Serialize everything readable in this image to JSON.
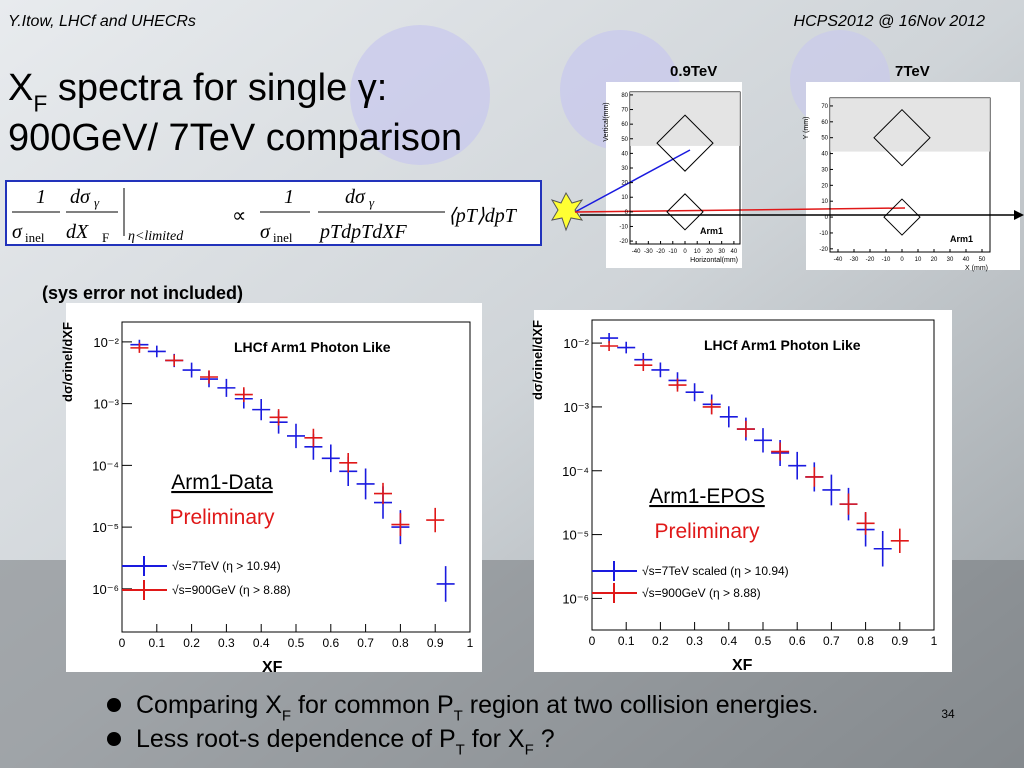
{
  "header": {
    "left": "Y.Itow,  LHCf and UHECRs",
    "right": "HCPS2012 @ 16Nov 2012"
  },
  "title": {
    "line1": [
      {
        "t": "X"
      },
      {
        "sub": "F"
      },
      {
        "t": " spectra for single γ:"
      }
    ],
    "line2": "900GeV/ 7TeV comparison"
  },
  "formula": {
    "one_a": "1",
    "sigma_a": "σ",
    "inel_a": "inel",
    "dsig_a": "dσ",
    "gamma_a": "γ",
    "dX": "dX",
    "F_a": "F",
    "cond": "η<limited",
    "prop": "∝",
    "one_b": "1",
    "sigma_b": "σ",
    "inel_b": "inel",
    "dsig_b": "dσ",
    "gamma_b": "γ",
    "den_b": "pTdpTdXF",
    "tail": "⟨pT⟩dpT"
  },
  "note": "(sys error not included)",
  "detectors": [
    {
      "label": "0.9TeV",
      "arm": "Arm1",
      "xlabel": "Horizontal(mm)",
      "ylabel": "Vertical(mm)",
      "xlim": [
        -45,
        45
      ],
      "ylim": [
        -22,
        82
      ],
      "xticks": [
        -40,
        -30,
        -20,
        -10,
        0,
        10,
        20,
        30,
        40
      ],
      "yticks": [
        -20,
        -10,
        0,
        10,
        20,
        30,
        40,
        50,
        60,
        70,
        80
      ]
    },
    {
      "label": "7TeV",
      "arm": "Arm1",
      "xlabel": "X (mm)",
      "ylabel": "Y (mm)",
      "xlim": [
        -45,
        55
      ],
      "ylim": [
        -22,
        75
      ],
      "xticks": [
        -40,
        -30,
        -20,
        -10,
        0,
        10,
        20,
        30,
        40,
        50
      ],
      "yticks": [
        -20,
        -10,
        0,
        10,
        20,
        30,
        40,
        50,
        60,
        70
      ]
    }
  ],
  "plots": [
    {
      "title": "LHCf Arm1 Photon Like",
      "xlabel": "XF",
      "ylabel": "dσ/σinel/dXF",
      "xlim": [
        0,
        1
      ],
      "ylim": [
        2e-07,
        0.021
      ],
      "log_y": true,
      "xticks": [
        0,
        0.1,
        0.2,
        0.3,
        0.4,
        0.5,
        0.6,
        0.7,
        0.8,
        0.9,
        1
      ],
      "yticks": [
        {
          "value": 0.01,
          "label": "10⁻²"
        },
        {
          "value": 0.001,
          "label": "10⁻³"
        },
        {
          "value": 0.0001,
          "label": "10⁻⁴"
        },
        {
          "value": 1e-05,
          "label": "10⁻⁵"
        },
        {
          "value": 1e-06,
          "label": "10⁻⁶"
        }
      ],
      "annotation": "Arm1-Data",
      "status": "Preliminary",
      "series": [
        {
          "name": "√s=7TeV (η > 10.94)",
          "color": "#1a1adf",
          "x": [
            0.05,
            0.1,
            0.15,
            0.2,
            0.25,
            0.3,
            0.35,
            0.4,
            0.45,
            0.5,
            0.55,
            0.6,
            0.65,
            0.7,
            0.75,
            0.8,
            0.93
          ],
          "values": [
            0.009,
            0.007,
            0.005,
            0.0035,
            0.0025,
            0.0018,
            0.0012,
            0.0008,
            0.0005,
            0.0003,
            0.0002,
            0.00013,
            8e-05,
            5e-05,
            2.5e-05,
            1e-05,
            1.2e-06
          ]
        },
        {
          "name": "√s=900GeV (η > 8.88)",
          "color": "#e01818",
          "x": [
            0.05,
            0.15,
            0.25,
            0.35,
            0.45,
            0.55,
            0.65,
            0.75,
            0.8,
            0.9
          ],
          "values": [
            0.008,
            0.005,
            0.0027,
            0.0014,
            0.0006,
            0.00028,
            0.00011,
            3.5e-05,
            1.1e-05,
            1.3e-05
          ]
        }
      ]
    },
    {
      "title": "LHCf Arm1 Photon Like",
      "xlabel": "XF",
      "ylabel": "dσ/σinel/dXF",
      "xlim": [
        0,
        1
      ],
      "ylim": [
        3.2e-07,
        0.023
      ],
      "log_y": true,
      "xticks": [
        0,
        0.1,
        0.2,
        0.3,
        0.4,
        0.5,
        0.6,
        0.7,
        0.8,
        0.9,
        1
      ],
      "yticks": [
        {
          "value": 0.01,
          "label": "10⁻²"
        },
        {
          "value": 0.001,
          "label": "10⁻³"
        },
        {
          "value": 0.0001,
          "label": "10⁻⁴"
        },
        {
          "value": 1e-05,
          "label": "10⁻⁵"
        },
        {
          "value": 1e-06,
          "label": "10⁻⁶"
        }
      ],
      "annotation": "Arm1-EPOS",
      "status": "Preliminary",
      "series": [
        {
          "name": "√s=7TeV scaled (η > 10.94)",
          "color": "#1a1adf",
          "x": [
            0.05,
            0.1,
            0.15,
            0.2,
            0.25,
            0.3,
            0.35,
            0.4,
            0.45,
            0.5,
            0.55,
            0.6,
            0.65,
            0.7,
            0.75,
            0.8,
            0.85
          ],
          "values": [
            0.012,
            0.0085,
            0.0055,
            0.0038,
            0.0026,
            0.0017,
            0.0011,
            0.0007,
            0.00045,
            0.0003,
            0.00019,
            0.00012,
            8e-05,
            5e-05,
            3e-05,
            1.2e-05,
            6e-06
          ]
        },
        {
          "name": "√s=900GeV (η > 8.88)",
          "color": "#e01818",
          "x": [
            0.05,
            0.15,
            0.25,
            0.35,
            0.45,
            0.55,
            0.65,
            0.75,
            0.8,
            0.9
          ],
          "values": [
            0.009,
            0.0045,
            0.0022,
            0.001,
            0.00045,
            0.0002,
            8e-05,
            3e-05,
            1.5e-05,
            8e-06
          ]
        }
      ]
    }
  ],
  "bullets": [
    [
      {
        "t": "Comparing X"
      },
      {
        "sub": "F"
      },
      {
        "t": " for common P"
      },
      {
        "sub": "T"
      },
      {
        "t": " region at two collision energies."
      }
    ],
    [
      {
        "t": "Less root-s dependence of P"
      },
      {
        "sub": "T"
      },
      {
        "t": "  for X"
      },
      {
        "sub": "F"
      },
      {
        "t": " ?"
      }
    ]
  ],
  "page_number": "34"
}
